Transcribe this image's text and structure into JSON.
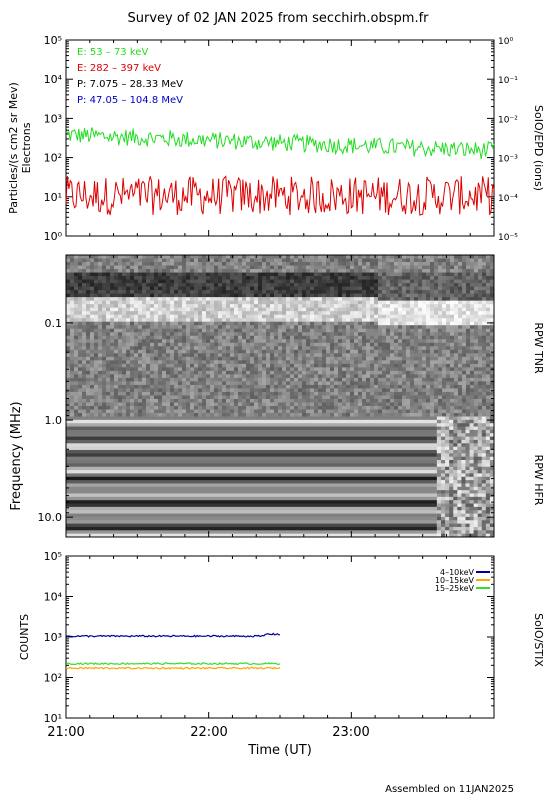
{
  "title": "Survey of 02 JAN 2025 from secchirh.obspm.fr",
  "footer": "Assembled on  11JAN2025",
  "chart_data": [
    {
      "type": "line",
      "panel": "SoIO/EPD",
      "ylabel_left": "Particles/(s cm2 sr Mev)",
      "ylabel_left2": "Electrons",
      "ylabel_right": "SoIO/EPD (ions)",
      "yscale": "log",
      "ylim": [
        1,
        100000
      ],
      "y_ticks": [
        "10⁰",
        "10¹",
        "10²",
        "10³",
        "10⁴",
        "10⁵"
      ],
      "right_ylim": [
        1e-05,
        1
      ],
      "right_ticks": [
        "10⁻⁵",
        "10⁻⁴",
        "10⁻³",
        "10⁻²",
        "10⁻¹",
        "10⁰"
      ],
      "legend": [
        {
          "label": "E: 53 – 73 keV",
          "color": "#22dd22"
        },
        {
          "label": "E: 282 – 397 keV",
          "color": "#dd0000"
        },
        {
          "label": "P: 7.075 – 28.33 MeV",
          "color": "#000000"
        },
        {
          "label": "P: 47.05 – 104.8 MeV",
          "color": "#0000cc"
        }
      ],
      "series_summary": [
        {
          "label": "E: 53 – 73 keV",
          "start": 380,
          "end": 150
        },
        {
          "label": "E: 282 – 397 keV",
          "typical": 12
        }
      ]
    },
    {
      "type": "heatmap",
      "panel": "RPW",
      "ylabel": "Frequency (MHz)",
      "right_labels": [
        "RPW TNR",
        "RPW HFR"
      ],
      "yscale": "log",
      "reversed": true,
      "ylim": [
        0.02,
        16
      ],
      "y_ticks": [
        {
          "value": 0.1,
          "label": "0.1"
        },
        {
          "value": 1.0,
          "label": "1.0"
        },
        {
          "value": 10.0,
          "label": "10.0"
        }
      ]
    },
    {
      "type": "line",
      "panel": "SoIO/STIX",
      "ylabel": "COUNTS",
      "right_label": "SoIO/STIX",
      "yscale": "log",
      "ylim": [
        10,
        100000
      ],
      "y_ticks": [
        "10¹",
        "10²",
        "10³",
        "10⁴",
        "10⁵"
      ],
      "series": [
        {
          "name": "4–10keV",
          "color": "#000099",
          "level": 1050
        },
        {
          "name": "10–15keV",
          "color": "#ffa500",
          "level": 170
        },
        {
          "name": "15–25keV",
          "color": "#33dd33",
          "level": 220
        }
      ],
      "x_range_hours": [
        21.0,
        22.5
      ]
    }
  ],
  "xaxis": {
    "label": "Time (UT)",
    "ticks": [
      "21:00",
      "22:00",
      "23:00"
    ],
    "range_hours": [
      21.0,
      24.0
    ]
  }
}
